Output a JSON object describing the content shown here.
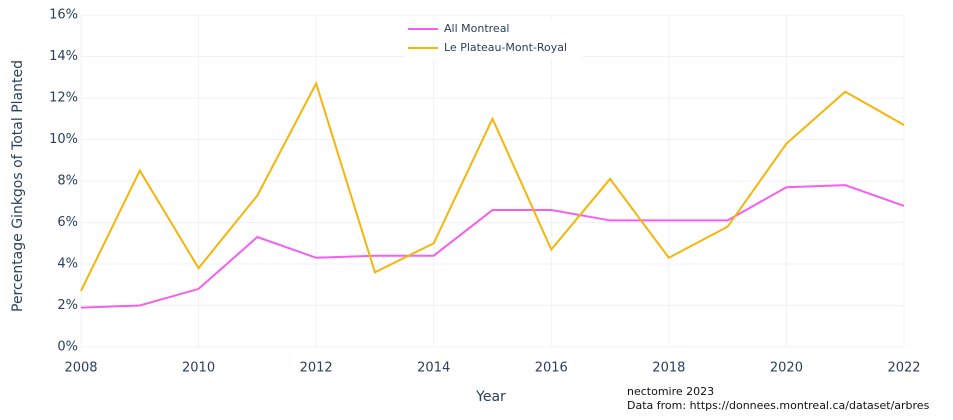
{
  "chart_data": {
    "type": "line",
    "x_label": "Year",
    "y_label": "Percentage Ginkgos of Total Planted",
    "x": [
      2008,
      2009,
      2010,
      2011,
      2012,
      2013,
      2014,
      2015,
      2016,
      2017,
      2018,
      2019,
      2020,
      2021,
      2022
    ],
    "series": [
      {
        "name": "All Montreal",
        "color": "#f55ff0",
        "values": [
          1.9,
          2.0,
          2.8,
          5.3,
          4.3,
          4.4,
          4.4,
          6.6,
          6.6,
          6.1,
          6.1,
          6.1,
          7.7,
          7.8,
          6.8
        ]
      },
      {
        "name": "Le Plateau-Mont-Royal",
        "color": "#f5b50a",
        "values": [
          2.7,
          8.5,
          3.8,
          7.3,
          12.7,
          3.6,
          5.0,
          11.0,
          4.7,
          8.1,
          4.3,
          5.8,
          9.8,
          12.3,
          10.7
        ]
      }
    ],
    "xlim": [
      2008,
      2022
    ],
    "xticks": [
      2008,
      2010,
      2012,
      2014,
      2016,
      2018,
      2020,
      2022
    ],
    "ylim": [
      0,
      16
    ],
    "yticks": [
      {
        "value": 0,
        "label": "0%"
      },
      {
        "value": 2,
        "label": "2%"
      },
      {
        "value": 4,
        "label": "4%"
      },
      {
        "value": 6,
        "label": "6%"
      },
      {
        "value": 8,
        "label": "8%"
      },
      {
        "value": 10,
        "label": "10%"
      },
      {
        "value": 12,
        "label": "12%"
      },
      {
        "value": 14,
        "label": "14%"
      },
      {
        "value": 16,
        "label": "16%"
      }
    ],
    "grid": true,
    "legend_position": "top",
    "annotation": [
      "nectomire 2023",
      "Data from: https://donnees.montreal.ca/dataset/arbres"
    ]
  }
}
